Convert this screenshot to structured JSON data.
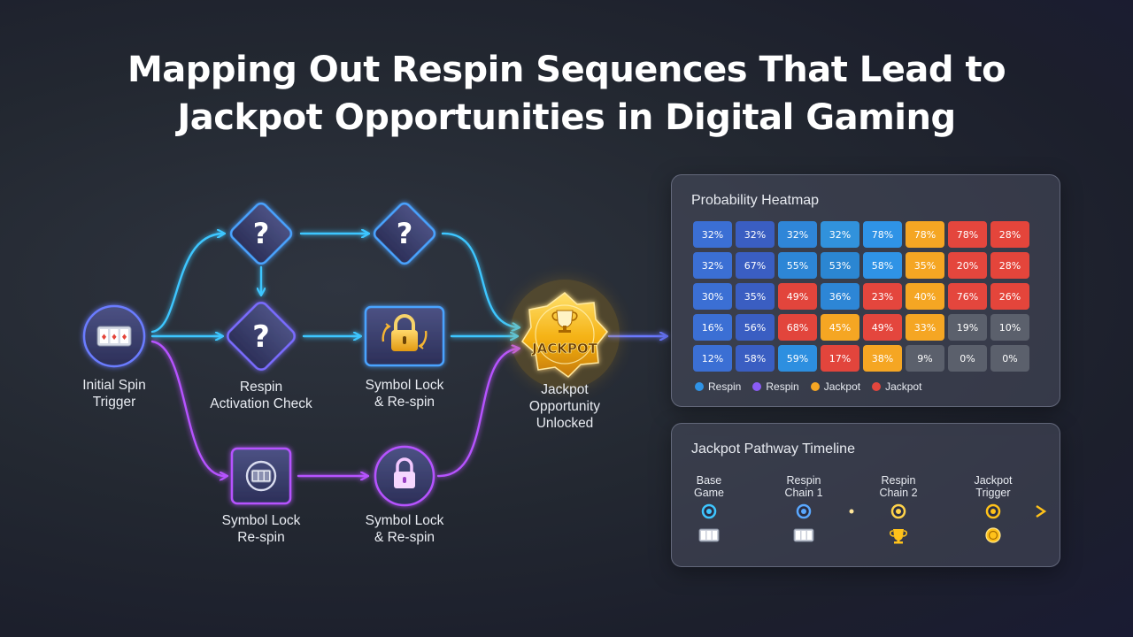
{
  "title": {
    "line1": "Mapping Out Respin Sequences That Lead to",
    "line2": "Jackpot Opportunities in Digital Gaming"
  },
  "flow": {
    "nodes": [
      {
        "id": "initial",
        "icon": "slot-reels-icon",
        "label_lines": [
          "Initial Spin",
          "Trigger"
        ]
      },
      {
        "id": "q-top-1",
        "icon": "question-diamond-icon",
        "label_lines": []
      },
      {
        "id": "q-top-2",
        "icon": "question-diamond-icon",
        "label_lines": []
      },
      {
        "id": "respin-check",
        "icon": "question-diamond-icon",
        "label_lines": [
          "Respin",
          "Activation Check"
        ]
      },
      {
        "id": "symbol-lock-mid",
        "icon": "lock-respin-icon",
        "label_lines": [
          "Symbol Lock",
          "& Re-spin"
        ]
      },
      {
        "id": "symbol-lock-low",
        "icon": "reels-respin-icon",
        "label_lines": [
          "Symbol Lock",
          "Re-spin"
        ]
      },
      {
        "id": "lock-low",
        "icon": "lock-icon",
        "label_lines": [
          "Symbol Lock",
          "& Re-spin"
        ]
      },
      {
        "id": "jackpot",
        "icon": "jackpot-badge-icon",
        "badge_text": "JACKPOT",
        "label_lines": [
          "Jackpot",
          "Opportunity",
          "Unlocked"
        ]
      }
    ],
    "colors": {
      "cyan": "#3ec6ff",
      "purple": "#b653ff",
      "blue": "#5a7bff",
      "gold": "#ffc21a"
    }
  },
  "heatmap": {
    "title": "Probability Heatmap",
    "rows": [
      [
        "32%",
        "32%",
        "32%",
        "32%",
        "78%",
        "78%",
        "78%",
        "28%"
      ],
      [
        "32%",
        "67%",
        "55%",
        "53%",
        "58%",
        "35%",
        "20%",
        "28%"
      ],
      [
        "30%",
        "35%",
        "49%",
        "36%",
        "23%",
        "40%",
        "76%",
        "26%"
      ],
      [
        "16%",
        "56%",
        "68%",
        "45%",
        "49%",
        "33%",
        "19%",
        "10%"
      ],
      [
        "12%",
        "58%",
        "59%",
        "17%",
        "38%",
        "9%",
        "0%",
        "0%"
      ]
    ],
    "cell_colors": [
      [
        "#3b6fd4",
        "#3a5ec2",
        "#2f86d8",
        "#3192dc",
        "#2f93e6",
        "#f5a623",
        "#e4463d",
        "#e4453b"
      ],
      [
        "#3b6fd4",
        "#3a5ec2",
        "#2d86d6",
        "#2b86d2",
        "#2f93e6",
        "#f5a623",
        "#e4463d",
        "#e4453b"
      ],
      [
        "#3b6fd4",
        "#3a5ec2",
        "#e2453c",
        "#2d86d6",
        "#e4463d",
        "#f5a623",
        "#e4463d",
        "#e4453b"
      ],
      [
        "#3b6fd4",
        "#3a5ec2",
        "#e2453c",
        "#f5a623",
        "#e4463d",
        "#f5a623",
        "#5b606c",
        "#5b606c"
      ],
      [
        "#3b6fd4",
        "#3a5ec2",
        "#2d8fe0",
        "#e2453c",
        "#f5a623",
        "#5b606c",
        "#5b606c",
        "#5b606c"
      ]
    ],
    "legend": [
      {
        "label": "Respin",
        "color": "#2f93e6"
      },
      {
        "label": "Respin",
        "color": "#8b5cf6"
      },
      {
        "label": "Jackpot",
        "color": "#f5a623"
      },
      {
        "label": "Jackpot",
        "color": "#e4463d"
      }
    ]
  },
  "timeline": {
    "title": "Jackpot Pathway Timeline",
    "stops": [
      {
        "label_lines": [
          "Base",
          "Game"
        ],
        "icon": "slot-reels-icon"
      },
      {
        "label_lines": [
          "Respin",
          "Chain 1"
        ],
        "icon": "slot-reels-icon"
      },
      {
        "label_lines": [
          "Respin",
          "Chain 2"
        ],
        "icon": "trophy-icon"
      },
      {
        "label_lines": [
          "Jackpot",
          "Trigger"
        ],
        "icon": "coin-icon"
      }
    ]
  }
}
